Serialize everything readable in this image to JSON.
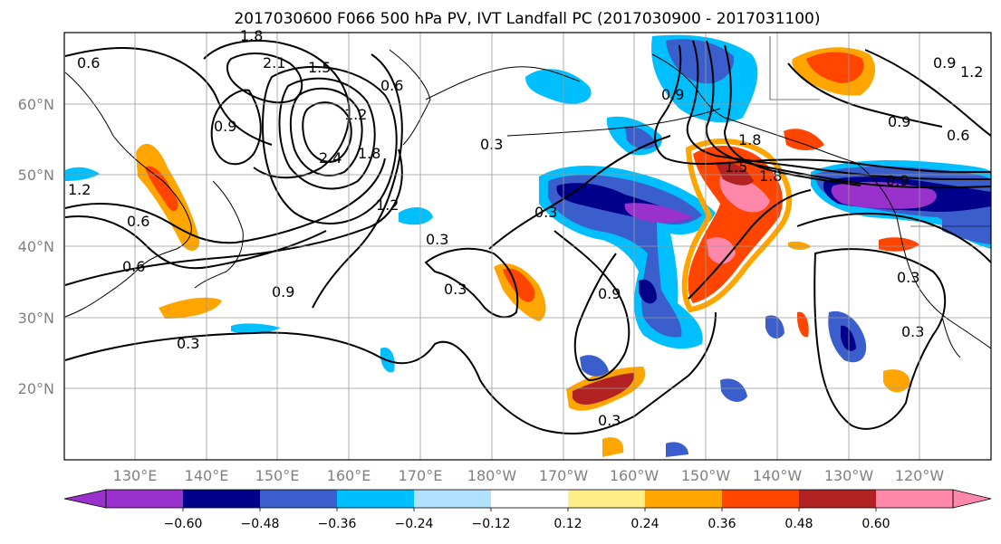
{
  "figure": {
    "title": "2017030600 F066 500 hPa PV, IVT Landfall PC (2017030900 - 2017031100)"
  },
  "axes": {
    "lon_labels": [
      "130°E",
      "140°E",
      "150°E",
      "160°E",
      "170°E",
      "180°W",
      "170°W",
      "160°W",
      "150°W",
      "140°W",
      "130°W",
      "120°W"
    ],
    "lat_labels": [
      "60°N",
      "50°N",
      "40°N",
      "30°N",
      "20°N"
    ],
    "lon_range": [
      120,
      250
    ],
    "lat_range": [
      10,
      70
    ],
    "grid": true
  },
  "colorbar": {
    "tick_labels": [
      "−0.60",
      "−0.48",
      "−0.36",
      "−0.24",
      "−0.12",
      "0.12",
      "0.24",
      "0.36",
      "0.48",
      "0.60"
    ],
    "colors": [
      "#9932cc",
      "#00008b",
      "#3a5fcd",
      "#00bfff",
      "#b0e2ff",
      "#ffffff",
      "#ffee88",
      "#ffa500",
      "#ff4500",
      "#b22222",
      "#ff88aa"
    ],
    "extend": "both"
  },
  "contour_labels": [
    "0.6",
    "1.8",
    "2.1",
    "1.5",
    "1.2",
    "0.9",
    "0.6",
    "2.4",
    "1.8",
    "1.2",
    "0.3",
    "0.3",
    "0.3",
    "0.6",
    "0.3",
    "0.9",
    "1.8",
    "1.5",
    "1.8",
    "0.9",
    "0.6",
    "1.2",
    "0.9",
    "1.2",
    "0.6",
    "0.9",
    "0.9",
    "0.3",
    "0.9",
    "0.3",
    "0.3",
    "0.3"
  ]
}
